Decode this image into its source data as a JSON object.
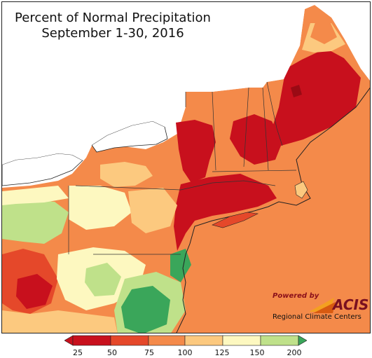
{
  "title": {
    "line1": "Percent of Normal Precipitation",
    "line2": "September 1-30, 2016"
  },
  "legend": {
    "ticks": [
      "25",
      "50",
      "75",
      "100",
      "125",
      "150",
      "200"
    ],
    "colors": [
      "#c8101d",
      "#e5482a",
      "#f48a4a",
      "#fcc97f",
      "#fdf8c0",
      "#bfe18a",
      "#3aa65a"
    ]
  },
  "logo": {
    "powered_by": "Powered by",
    "name": "ACIS",
    "subtitle": "Regional Climate Centers"
  },
  "colors": {
    "dry_extreme": "#c8101d",
    "dry": "#e5482a",
    "dry_moderate": "#f48a4a",
    "near_normal": "#fcc97f",
    "normal": "#fdf8c0",
    "wet": "#bfe18a",
    "wet_extreme": "#3aa65a",
    "water": "#ffffff"
  }
}
